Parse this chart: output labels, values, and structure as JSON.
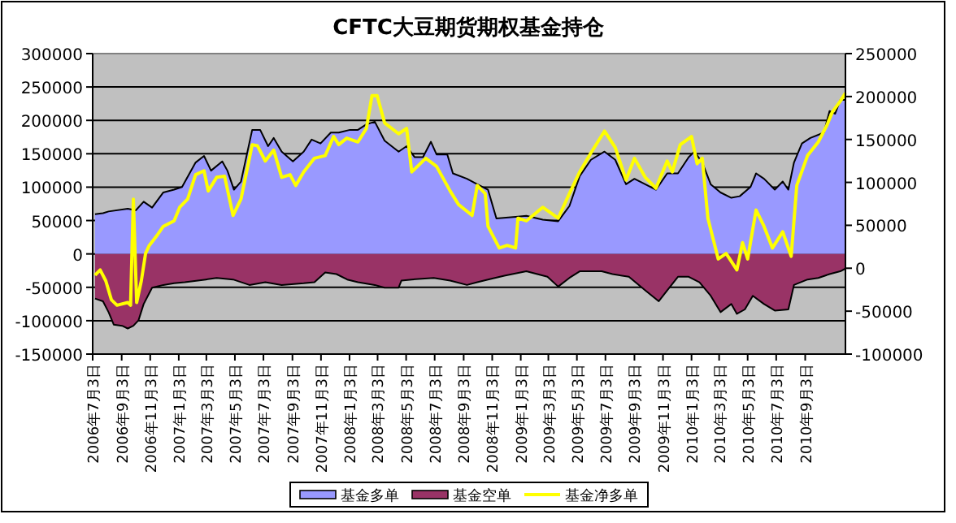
{
  "chart_data": {
    "type": "area",
    "title": "CFTC大豆期货期权基金持仓",
    "xlim": [
      "2006-07-03",
      "2010-11-28"
    ],
    "xticks": [
      {
        "value": "2006-07-03",
        "label": "2006年7月3日"
      },
      {
        "value": "2006-09-03",
        "label": "2006年9月3日"
      },
      {
        "value": "2006-11-03",
        "label": "2006年11月3日"
      },
      {
        "value": "2007-01-03",
        "label": "2007年1月3日"
      },
      {
        "value": "2007-03-03",
        "label": "2007年3月3日"
      },
      {
        "value": "2007-05-03",
        "label": "2007年5月3日"
      },
      {
        "value": "2007-07-03",
        "label": "2007年7月3日"
      },
      {
        "value": "2007-09-03",
        "label": "2007年9月3日"
      },
      {
        "value": "2007-11-03",
        "label": "2007年11月3日"
      },
      {
        "value": "2008-01-03",
        "label": "2008年1月3日"
      },
      {
        "value": "2008-03-03",
        "label": "2008年3月3日"
      },
      {
        "value": "2008-05-03",
        "label": "2008年5月3日"
      },
      {
        "value": "2008-07-03",
        "label": "2008年7月3日"
      },
      {
        "value": "2008-09-03",
        "label": "2008年9月3日"
      },
      {
        "value": "2008-11-03",
        "label": "2008年11月3日"
      },
      {
        "value": "2009-01-03",
        "label": "2009年1月3日"
      },
      {
        "value": "2009-03-03",
        "label": "2009年3月3日"
      },
      {
        "value": "2009-05-03",
        "label": "2009年5月3日"
      },
      {
        "value": "2009-07-03",
        "label": "2009年7月3日"
      },
      {
        "value": "2009-09-03",
        "label": "2009年9月3日"
      },
      {
        "value": "2009-11-03",
        "label": "2009年11月3日"
      },
      {
        "value": "2010-01-03",
        "label": "2010年1月3日"
      },
      {
        "value": "2010-03-03",
        "label": "2010年3月3日"
      },
      {
        "value": "2010-05-03",
        "label": "2010年5月3日"
      },
      {
        "value": "2010-07-03",
        "label": "2010年7月3日"
      },
      {
        "value": "2010-09-03",
        "label": "2010年9月3日"
      }
    ],
    "ylim": [
      -150000,
      300000
    ],
    "yticks": [
      -150000,
      -100000,
      -50000,
      0,
      50000,
      100000,
      150000,
      200000,
      250000,
      300000
    ],
    "y2lim": [
      -100000,
      250000
    ],
    "y2ticks": [
      -100000,
      -50000,
      0,
      50000,
      100000,
      150000,
      200000,
      250000
    ],
    "grid": "y",
    "legend": "bottom",
    "series": [
      {
        "name": "基金多单",
        "color": "#9999ff",
        "x": [
          "2006-07-08",
          "2006-07-25",
          "2006-08-06",
          "2006-09-16",
          "2006-10-03",
          "2006-10-20",
          "2006-11-07",
          "2006-12-01",
          "2006-12-24",
          "2007-01-10",
          "2007-02-08",
          "2007-02-26",
          "2007-03-13",
          "2007-04-06",
          "2007-04-17",
          "2007-05-01",
          "2007-05-16",
          "2007-06-09",
          "2007-06-26",
          "2007-07-13",
          "2007-07-25",
          "2007-08-11",
          "2007-09-04",
          "2007-09-27",
          "2007-10-14",
          "2007-11-02",
          "2007-11-24",
          "2007-12-11",
          "2008-01-04",
          "2008-01-21",
          "2008-02-08",
          "2008-02-26",
          "2008-03-18",
          "2008-04-17",
          "2008-05-04",
          "2008-05-21",
          "2008-06-08",
          "2008-06-25",
          "2008-07-07",
          "2008-07-30",
          "2008-08-11",
          "2008-09-10",
          "2008-10-02",
          "2008-10-25",
          "2008-11-12",
          "2008-12-23",
          "2009-01-15",
          "2009-02-19",
          "2009-03-24",
          "2009-04-17",
          "2009-05-09",
          "2009-06-02",
          "2009-07-01",
          "2009-07-24",
          "2009-08-16",
          "2009-09-03",
          "2009-09-26",
          "2009-10-19",
          "2009-11-12",
          "2009-12-05",
          "2009-12-28",
          "2010-01-09",
          "2010-01-26",
          "2010-02-13",
          "2010-03-06",
          "2010-03-29",
          "2010-04-16",
          "2010-05-09",
          "2010-05-21",
          "2010-06-07",
          "2010-06-30",
          "2010-07-17",
          "2010-07-29",
          "2010-08-10",
          "2010-08-27",
          "2010-09-14",
          "2010-10-13",
          "2010-10-25",
          "2010-11-06",
          "2010-11-17",
          "2010-11-28"
        ],
        "values": [
          59500,
          61000,
          63600,
          67600,
          65200,
          78200,
          69300,
          92100,
          96200,
          100200,
          136900,
          146700,
          124700,
          138600,
          124700,
          96200,
          108400,
          185800,
          185800,
          161400,
          173600,
          153200,
          138600,
          153200,
          171200,
          165400,
          181700,
          181700,
          185800,
          185800,
          194000,
          198000,
          169500,
          153200,
          161400,
          145000,
          145000,
          168000,
          149000,
          149000,
          120600,
          112500,
          104300,
          96200,
          53000,
          55400,
          57000,
          51300,
          48900,
          71700,
          116500,
          141000,
          153200,
          141000,
          104300,
          112500,
          104300,
          96200,
          120600,
          120600,
          145000,
          153200,
          137000,
          104300,
          92000,
          84000,
          86400,
          100200,
          120600,
          112500,
          96200,
          108400,
          96200,
          137000,
          165400,
          173600,
          181700,
          214000,
          210000,
          230600,
          230600
        ]
      },
      {
        "name": "基金空单",
        "color": "#993366",
        "x": [
          "2006-07-08",
          "2006-07-25",
          "2006-08-06",
          "2006-08-17",
          "2006-09-04",
          "2006-09-16",
          "2006-09-28",
          "2006-10-09",
          "2006-10-20",
          "2006-11-07",
          "2006-12-01",
          "2006-12-24",
          "2007-01-16",
          "2007-03-02",
          "2007-03-25",
          "2007-04-29",
          "2007-06-03",
          "2007-07-07",
          "2007-08-11",
          "2007-09-27",
          "2007-10-20",
          "2007-11-12",
          "2007-12-06",
          "2007-12-29",
          "2008-01-21",
          "2008-02-26",
          "2008-03-18",
          "2008-04-17",
          "2008-04-23",
          "2008-05-15",
          "2008-07-01",
          "2008-08-05",
          "2008-09-10",
          "2008-10-02",
          "2008-10-25",
          "2008-11-29",
          "2009-01-15",
          "2009-03-01",
          "2009-03-24",
          "2009-04-17",
          "2009-05-09",
          "2009-06-25",
          "2009-07-18",
          "2009-08-22",
          "2009-09-26",
          "2009-10-25",
          "2009-11-12",
          "2009-12-05",
          "2009-12-28",
          "2010-01-20",
          "2010-02-13",
          "2010-03-06",
          "2010-03-29",
          "2010-04-10",
          "2010-04-27",
          "2010-05-14",
          "2010-06-07",
          "2010-06-30",
          "2010-07-29",
          "2010-08-10",
          "2010-09-08",
          "2010-10-01",
          "2010-10-25",
          "2010-11-17",
          "2010-11-28"
        ],
        "values": [
          -66800,
          -70900,
          -87200,
          -105900,
          -107600,
          -111700,
          -107600,
          -99400,
          -75000,
          -50500,
          -46500,
          -44000,
          -42400,
          -38300,
          -35900,
          -38300,
          -46500,
          -42400,
          -46500,
          -44000,
          -42400,
          -27700,
          -30200,
          -38300,
          -42400,
          -46500,
          -50500,
          -50500,
          -39900,
          -38300,
          -35900,
          -39900,
          -46500,
          -42400,
          -38300,
          -32600,
          -26000,
          -34200,
          -48900,
          -35900,
          -26000,
          -26000,
          -30200,
          -34200,
          -54600,
          -70900,
          -54600,
          -34200,
          -34200,
          -42400,
          -62700,
          -87200,
          -75000,
          -89700,
          -83100,
          -62700,
          -75000,
          -84800,
          -83100,
          -46500,
          -38300,
          -35900,
          -30200,
          -26000,
          -22000
        ]
      },
      {
        "name": "基金净多单",
        "type": "line",
        "axis": "y2",
        "color": "#ffff00",
        "x": [
          "2006-07-08",
          "2006-07-19",
          "2006-07-31",
          "2006-08-12",
          "2006-08-24",
          "2006-09-16",
          "2006-09-22",
          "2006-09-28",
          "2006-10-05",
          "2006-10-15",
          "2006-10-24",
          "2006-11-01",
          "2006-11-19",
          "2006-12-01",
          "2006-12-24",
          "2007-01-05",
          "2007-01-22",
          "2007-02-08",
          "2007-02-26",
          "2007-03-07",
          "2007-03-25",
          "2007-04-11",
          "2007-04-29",
          "2007-05-16",
          "2007-06-09",
          "2007-06-20",
          "2007-07-07",
          "2007-07-25",
          "2007-08-11",
          "2007-08-29",
          "2007-09-10",
          "2007-09-27",
          "2007-10-20",
          "2007-11-12",
          "2007-11-30",
          "2007-12-11",
          "2007-12-28",
          "2008-01-21",
          "2008-02-08",
          "2008-02-20",
          "2008-03-02",
          "2008-03-18",
          "2008-04-17",
          "2008-05-04",
          "2008-05-15",
          "2008-06-14",
          "2008-07-07",
          "2008-08-05",
          "2008-08-23",
          "2008-09-21",
          "2008-10-02",
          "2008-10-19",
          "2008-10-25",
          "2008-10-31",
          "2008-11-18",
          "2008-12-05",
          "2008-12-23",
          "2008-12-28",
          "2009-01-15",
          "2009-02-19",
          "2009-03-24",
          "2009-04-17",
          "2009-05-09",
          "2009-06-02",
          "2009-07-01",
          "2009-07-24",
          "2009-08-16",
          "2009-09-03",
          "2009-09-26",
          "2009-10-19",
          "2009-11-12",
          "2009-11-23",
          "2009-12-10",
          "2010-01-03",
          "2010-01-15",
          "2010-01-26",
          "2010-02-07",
          "2010-03-01",
          "2010-03-18",
          "2010-04-10",
          "2010-04-22",
          "2010-05-03",
          "2010-05-21",
          "2010-06-07",
          "2010-06-25",
          "2010-07-17",
          "2010-08-04",
          "2010-08-16",
          "2010-09-08",
          "2010-10-01",
          "2010-10-19",
          "2010-10-31",
          "2010-11-17",
          "2010-11-28"
        ],
        "values": [
          -8200,
          -1900,
          -14600,
          -36800,
          -43100,
          -39900,
          -43100,
          80500,
          -39900,
          -14600,
          17100,
          26600,
          39300,
          48800,
          55200,
          71000,
          80500,
          109000,
          113500,
          90000,
          105900,
          107100,
          61500,
          80500,
          143900,
          142700,
          124900,
          137600,
          105900,
          109000,
          96400,
          112200,
          128100,
          131200,
          153400,
          143900,
          151500,
          147100,
          162900,
          201000,
          201000,
          169300,
          156600,
          162900,
          112200,
          128100,
          118600,
          90000,
          74200,
          61500,
          96400,
          86900,
          48800,
          42500,
          23500,
          26600,
          23500,
          58300,
          55200,
          71000,
          58300,
          86900,
          112200,
          134400,
          159700,
          140700,
          102700,
          128100,
          105900,
          93200,
          124900,
          112200,
          143900,
          153400,
          121700,
          128100,
          58300,
          10800,
          17100,
          -1900,
          29800,
          10800,
          67800,
          48800,
          23500,
          42500,
          13900,
          96400,
          131200,
          147100,
          166100,
          182000,
          194600,
          204100
        ]
      }
    ]
  }
}
